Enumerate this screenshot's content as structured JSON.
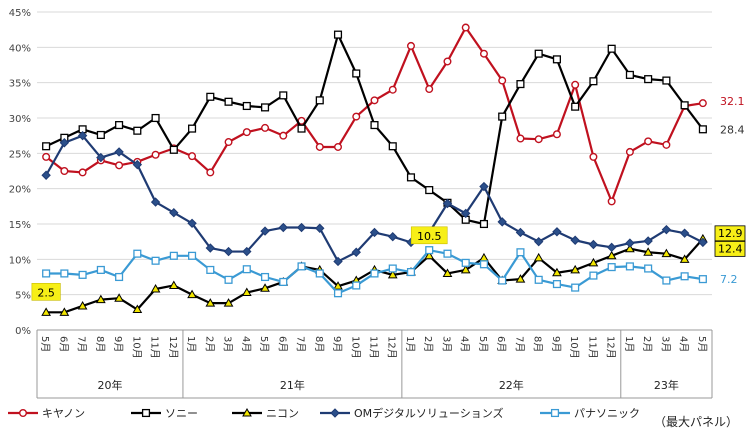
{
  "chart_data": {
    "type": "line",
    "title": "",
    "note": "（最大パネル）",
    "ylim": [
      0,
      45
    ],
    "yticks": [
      0,
      5,
      10,
      15,
      20,
      25,
      30,
      35,
      40,
      45
    ],
    "ytick_labels": [
      "0%",
      "5%",
      "10%",
      "15%",
      "20%",
      "25%",
      "30%",
      "35%",
      "40%",
      "45%"
    ],
    "x_labels": [
      "5月",
      "6月",
      "7月",
      "8月",
      "9月",
      "10月",
      "11月",
      "12月",
      "1月",
      "2月",
      "3月",
      "4月",
      "5月",
      "6月",
      "7月",
      "8月",
      "9月",
      "10月",
      "11月",
      "12月",
      "1月",
      "2月",
      "3月",
      "4月",
      "5月",
      "6月",
      "7月",
      "8月",
      "9月",
      "10月",
      "11月",
      "12月",
      "1月",
      "2月",
      "3月",
      "4月",
      "5月"
    ],
    "year_groups": [
      {
        "label": "20年",
        "start": 0,
        "end": 7
      },
      {
        "label": "21年",
        "start": 8,
        "end": 19
      },
      {
        "label": "22年",
        "start": 20,
        "end": 31
      },
      {
        "label": "23年",
        "start": 32,
        "end": 36
      }
    ],
    "series": [
      {
        "name": "キヤノン",
        "color": "#c0111f",
        "marker": "circle",
        "values": [
          24.5,
          22.5,
          22.3,
          24.0,
          23.3,
          23.8,
          24.8,
          25.7,
          24.6,
          22.3,
          26.6,
          28.0,
          28.6,
          27.5,
          29.6,
          25.9,
          25.9,
          30.2,
          32.5,
          34.0,
          40.2,
          34.1,
          38.0,
          42.8,
          39.1,
          35.3,
          27.1,
          27.0,
          27.7,
          34.7,
          24.5,
          18.2,
          25.2,
          26.7,
          26.2,
          31.7,
          32.1
        ]
      },
      {
        "name": "ソニー",
        "color": "#000000",
        "marker": "square",
        "values": [
          26.0,
          27.2,
          28.4,
          27.6,
          29.0,
          28.2,
          30.0,
          25.5,
          28.5,
          33.0,
          32.3,
          31.7,
          31.5,
          33.2,
          28.5,
          32.5,
          41.8,
          36.3,
          29.0,
          26.0,
          21.6,
          19.8,
          18.0,
          15.6,
          15.0,
          30.2,
          34.8,
          39.1,
          38.3,
          31.6,
          35.2,
          39.8,
          36.1,
          35.5,
          35.3,
          31.8,
          28.4
        ]
      },
      {
        "name": "ニコン",
        "color": "#000000",
        "marker": "triangle",
        "values": [
          2.5,
          2.5,
          3.4,
          4.3,
          4.5,
          2.9,
          5.8,
          6.3,
          5.0,
          3.8,
          3.8,
          5.3,
          5.9,
          6.8,
          9.0,
          8.5,
          6.2,
          7.0,
          8.5,
          7.8,
          8.2,
          10.5,
          8.0,
          8.5,
          10.2,
          7.0,
          7.2,
          10.2,
          8.1,
          8.5,
          9.5,
          10.5,
          11.5,
          11.0,
          10.8,
          10.0,
          12.9
        ]
      },
      {
        "name": "OMデジタルソリューションズ",
        "color": "#1f3b73",
        "marker": "diamond",
        "values": [
          21.9,
          26.5,
          27.5,
          24.4,
          25.2,
          23.4,
          18.1,
          16.6,
          15.1,
          11.6,
          11.1,
          11.1,
          14.0,
          14.5,
          14.5,
          14.4,
          9.7,
          11.0,
          13.8,
          13.2,
          12.4,
          13.8,
          17.9,
          16.5,
          20.3,
          15.3,
          13.8,
          12.5,
          13.9,
          12.7,
          12.1,
          11.7,
          12.3,
          12.6,
          14.2,
          13.7,
          12.4
        ]
      },
      {
        "name": "パナソニック",
        "color": "#3a9ad4",
        "marker": "square",
        "values": [
          8.0,
          8.0,
          7.8,
          8.5,
          7.5,
          10.8,
          9.8,
          10.5,
          10.5,
          8.5,
          7.1,
          8.6,
          7.5,
          6.8,
          9.0,
          8.0,
          5.2,
          6.3,
          8.0,
          8.7,
          8.2,
          11.3,
          10.8,
          9.5,
          9.3,
          7.0,
          11.0,
          7.1,
          6.5,
          6.0,
          7.7,
          8.9,
          9.0,
          8.7,
          7.0,
          7.6,
          7.2
        ]
      }
    ],
    "end_labels": [
      {
        "series": "キヤノン",
        "text": "32.1",
        "boxed": false
      },
      {
        "series": "ソニー",
        "text": "28.4",
        "boxed": false
      },
      {
        "series": "ニコン",
        "text": "12.9",
        "boxed": true
      },
      {
        "series": "OMデジタルソリューションズ",
        "text": "12.4",
        "boxed": true
      },
      {
        "series": "パナソニック",
        "text": "7.2",
        "boxed": false
      }
    ],
    "callouts": [
      {
        "series": "ニコン",
        "index": 0,
        "text": "2.5"
      },
      {
        "series": "ニコン",
        "index": 21,
        "text": "10.5"
      }
    ]
  }
}
